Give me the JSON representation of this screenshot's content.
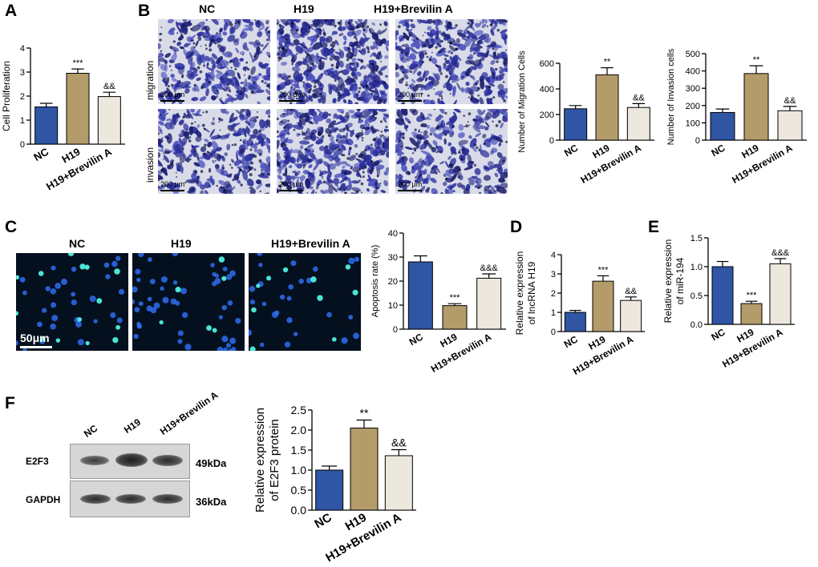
{
  "panels": {
    "A": "A",
    "B": "B",
    "C": "C",
    "D": "D",
    "E": "E",
    "F": "F"
  },
  "groups": [
    "NC",
    "H19",
    "H19+Brevilin A"
  ],
  "colors": {
    "nc": "#2f55a4",
    "h19": "#b49b6a",
    "brevilin": "#ece8dd"
  },
  "panelB": {
    "row_labels": [
      "migration",
      "invasion"
    ],
    "scale_label": "200 μm"
  },
  "panelC": {
    "scale_label": "50μm"
  },
  "panelF": {
    "lane_labels": [
      "NC",
      "H19",
      "H19+Brevilin A"
    ],
    "proteins": [
      {
        "name": "E2F3",
        "size": "49kDa"
      },
      {
        "name": "GAPDH",
        "size": "36kDa"
      }
    ]
  },
  "chart_data": [
    {
      "id": "A",
      "type": "bar",
      "categories": [
        "NC",
        "H19",
        "H19+Brevilin A"
      ],
      "values": [
        1.55,
        2.95,
        1.98
      ],
      "errors": [
        0.15,
        0.18,
        0.18
      ],
      "ylabel": "Cell Proliferation",
      "ylim": [
        0,
        4
      ],
      "yticks": [
        0,
        1,
        2,
        3,
        4
      ],
      "annotations": [
        "",
        "***",
        "&&"
      ]
    },
    {
      "id": "B-migration",
      "type": "bar",
      "categories": [
        "NC",
        "H19",
        "H19+Brevilin A"
      ],
      "values": [
        245,
        510,
        255
      ],
      "errors": [
        25,
        55,
        30
      ],
      "ylabel": "Number of Migration Cells",
      "ylim": [
        0,
        600
      ],
      "yticks": [
        0,
        200,
        400,
        600
      ],
      "annotations": [
        "",
        "**",
        "&&"
      ]
    },
    {
      "id": "B-invasion",
      "type": "bar",
      "categories": [
        "NC",
        "H19",
        "H19+Brevilin A"
      ],
      "values": [
        160,
        385,
        170
      ],
      "errors": [
        20,
        45,
        25
      ],
      "ylabel": "Number of Invasion cells",
      "ylim": [
        0,
        500
      ],
      "yticks": [
        0,
        100,
        200,
        300,
        400,
        500
      ],
      "annotations": [
        "",
        "**",
        "&&"
      ]
    },
    {
      "id": "C",
      "type": "bar",
      "categories": [
        "NC",
        "H19",
        "H19+Brevilin A"
      ],
      "values": [
        28,
        9.8,
        21.2
      ],
      "errors": [
        2.5,
        0.8,
        1.8
      ],
      "ylabel": "Apoptosis rate (%)",
      "ylim": [
        0,
        40
      ],
      "yticks": [
        0,
        10,
        20,
        30,
        40
      ],
      "annotations": [
        "",
        "***",
        "&&&"
      ]
    },
    {
      "id": "D",
      "type": "bar",
      "categories": [
        "NC",
        "H19",
        "H19+Brevilin A"
      ],
      "values": [
        1.0,
        2.62,
        1.62
      ],
      "errors": [
        0.1,
        0.28,
        0.18
      ],
      "ylabel": "Relative expression of lncRNA H19",
      "ylim": [
        0,
        4
      ],
      "yticks": [
        0,
        1,
        2,
        3,
        4
      ],
      "annotations": [
        "",
        "***",
        "&&"
      ]
    },
    {
      "id": "E",
      "type": "bar",
      "categories": [
        "NC",
        "H19",
        "H19+Brevilin A"
      ],
      "values": [
        1.0,
        0.36,
        1.05
      ],
      "errors": [
        0.09,
        0.04,
        0.09
      ],
      "ylabel": "Relative expression of miR-194",
      "ylim": [
        0,
        1.5
      ],
      "yticks": [
        0.0,
        0.5,
        1.0,
        1.5
      ],
      "annotations": [
        "",
        "***",
        "&&&"
      ]
    },
    {
      "id": "F",
      "type": "bar",
      "categories": [
        "NC",
        "H19",
        "H19+Brevilin A"
      ],
      "values": [
        1.0,
        2.05,
        1.36
      ],
      "errors": [
        0.1,
        0.2,
        0.15
      ],
      "ylabel": "Relative expression of E2F3 protein",
      "ylim": [
        0,
        2.5
      ],
      "yticks": [
        0.0,
        0.5,
        1.0,
        1.5,
        2.0,
        2.5
      ],
      "annotations": [
        "",
        "**",
        "&&"
      ]
    }
  ]
}
